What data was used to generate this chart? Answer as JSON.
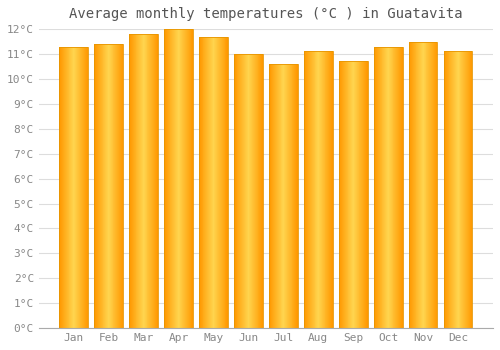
{
  "title": "Average monthly temperatures (°C ) in Guatavita",
  "months": [
    "Jan",
    "Feb",
    "Mar",
    "Apr",
    "May",
    "Jun",
    "Jul",
    "Aug",
    "Sep",
    "Oct",
    "Nov",
    "Dec"
  ],
  "values": [
    11.3,
    11.4,
    11.8,
    12.0,
    11.7,
    11.0,
    10.6,
    11.1,
    10.7,
    11.3,
    11.5,
    11.1
  ],
  "ylim": [
    0,
    12
  ],
  "yticks": [
    0,
    1,
    2,
    3,
    4,
    5,
    6,
    7,
    8,
    9,
    10,
    11,
    12
  ],
  "bar_color_center": "#FFD54F",
  "bar_color_edge": "#FFA000",
  "background_color": "#FFFFFF",
  "grid_color": "#DDDDDD",
  "title_fontsize": 10,
  "tick_fontsize": 8,
  "font_family": "monospace"
}
